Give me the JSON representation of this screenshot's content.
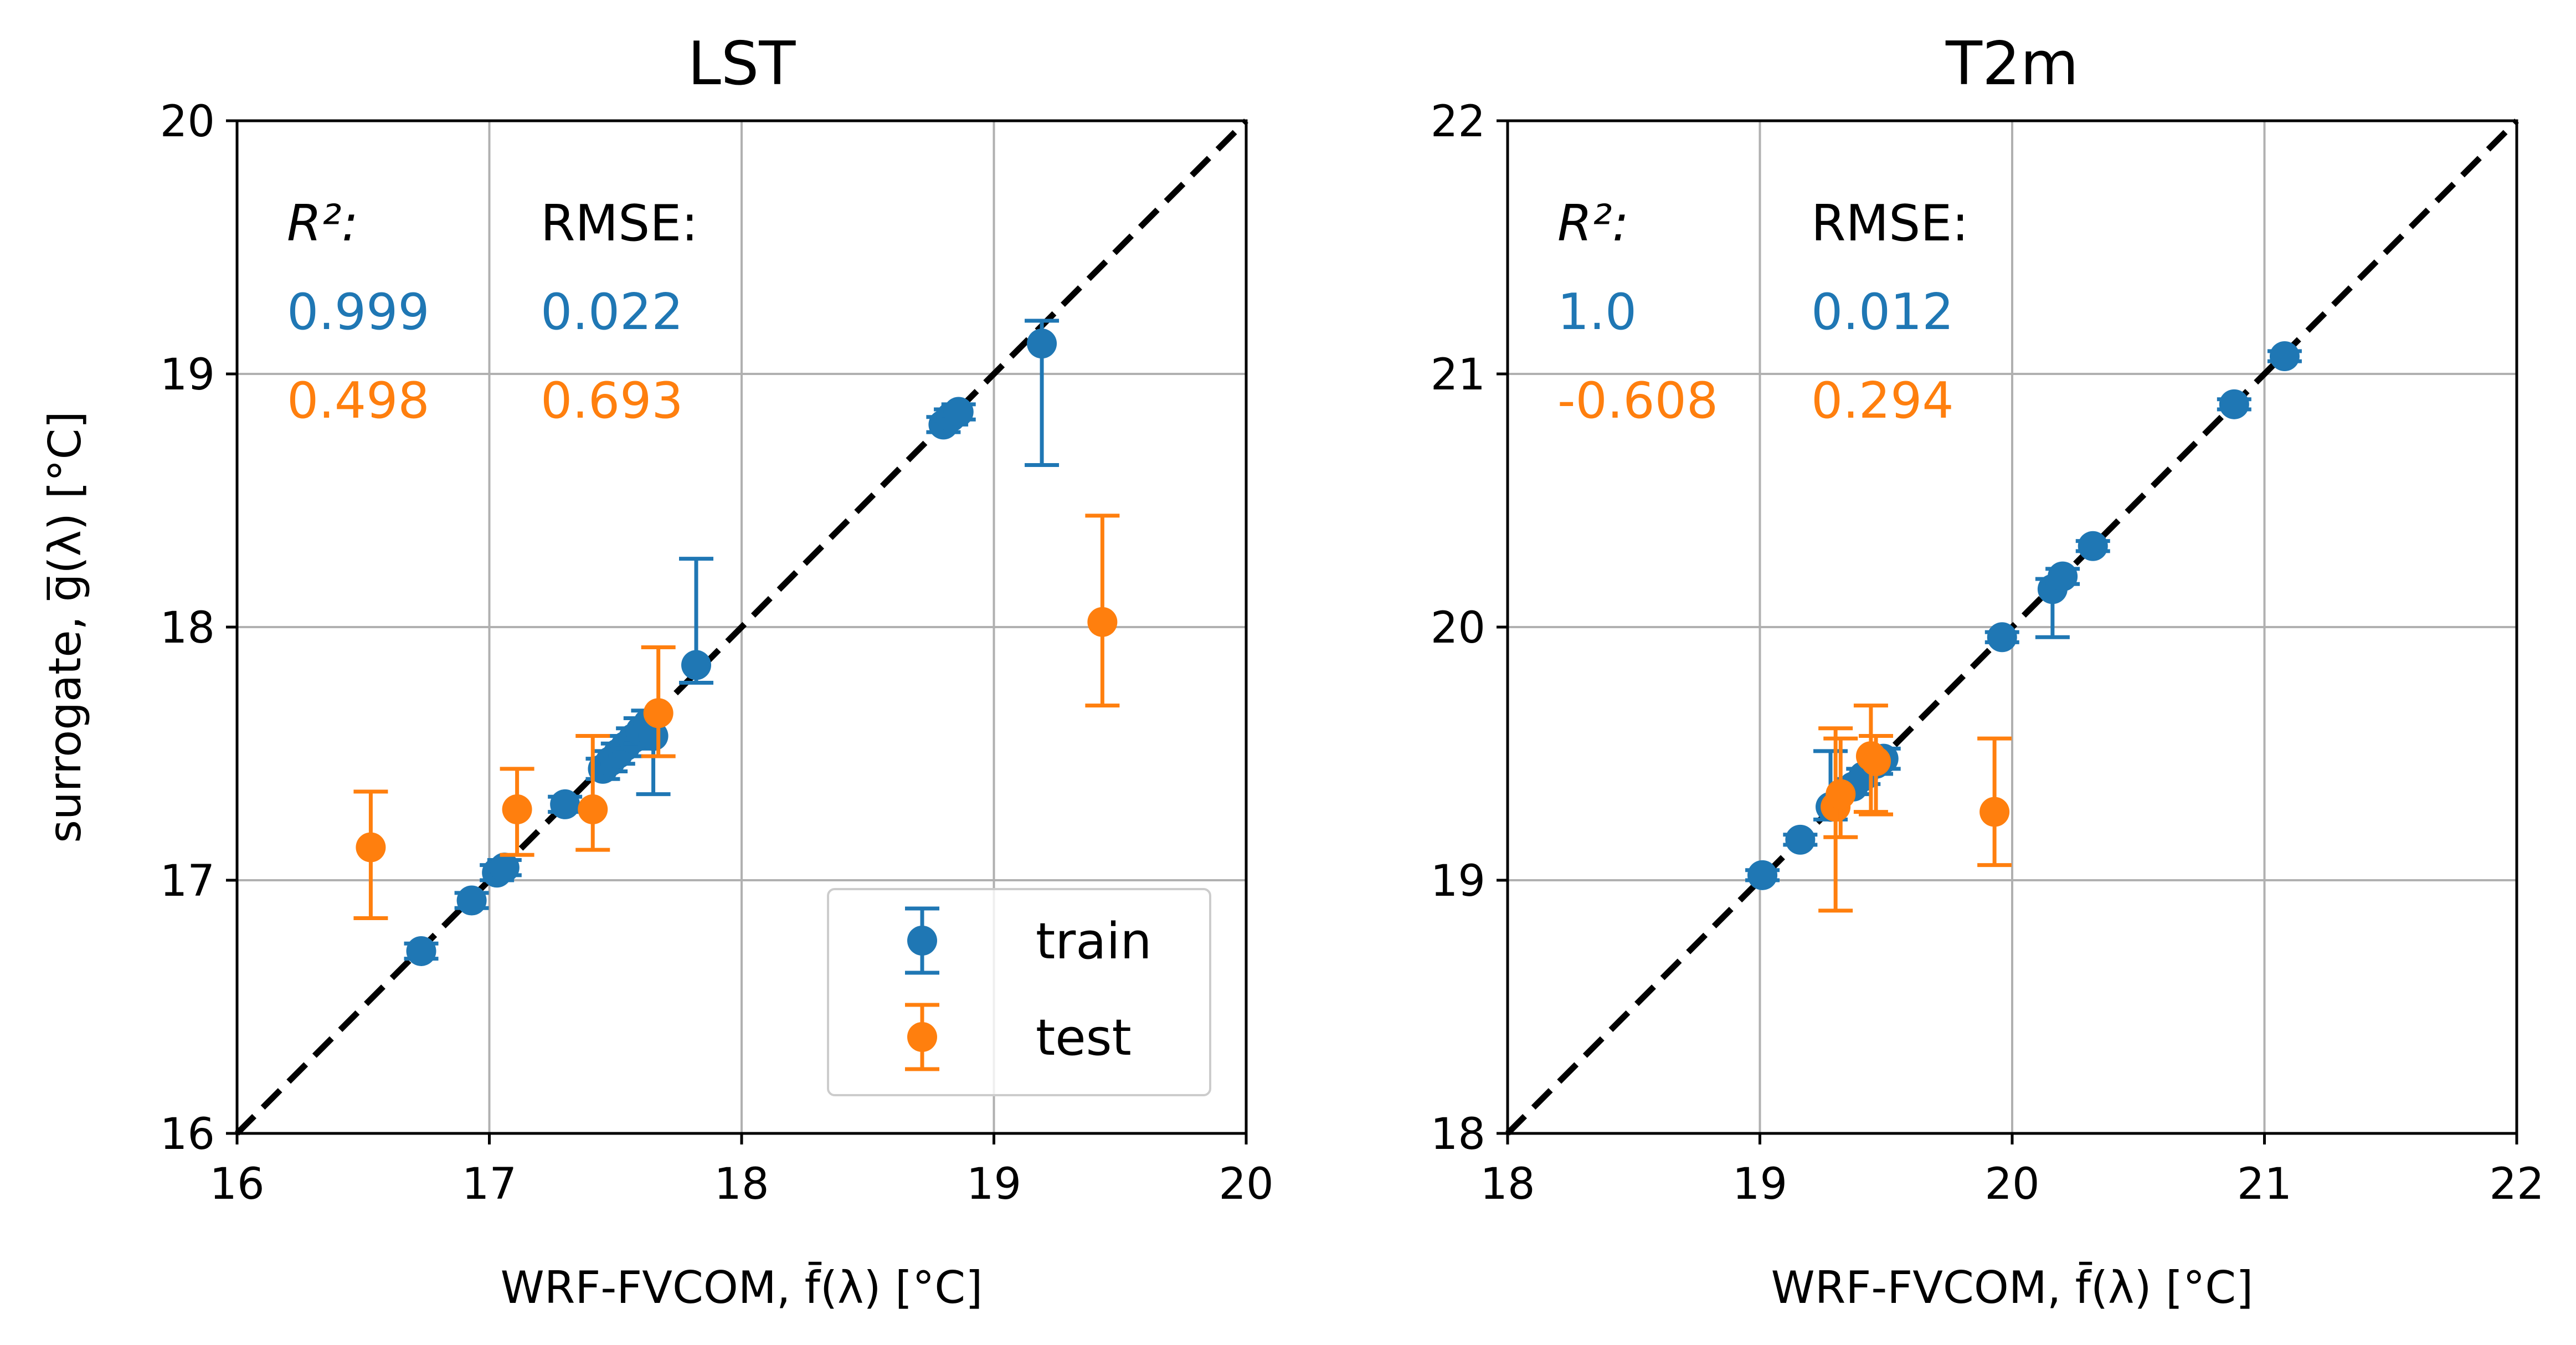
{
  "figure": {
    "ylabel_left": "surrogate, g̅(λ) [°C]"
  },
  "colors": {
    "train": "#1f77b4",
    "test": "#ff7f0e",
    "identity_line": "#000000",
    "grid": "#b0b0b0"
  },
  "legend": {
    "placement": "lower-right",
    "train_label": "train",
    "test_label": "test"
  },
  "chart_data": [
    {
      "type": "scatter",
      "title": "LST",
      "xlabel": "WRF-FVCOM, f̄(λ) [°C]",
      "ylabel": "surrogate, g̅(λ) [°C]",
      "xlim": [
        16,
        20
      ],
      "ylim": [
        16,
        20
      ],
      "xticks": [
        "16",
        "17",
        "18",
        "19",
        "20"
      ],
      "yticks": [
        "16",
        "17",
        "18",
        "19",
        "20"
      ],
      "grid": true,
      "identity_line": true,
      "metrics": {
        "r2_label": "R²:",
        "rmse_label": "RMSE:",
        "train_r2": "0.999",
        "train_rmse": "0.022",
        "test_r2": "0.498",
        "test_rmse": "0.693"
      },
      "series": [
        {
          "name": "train",
          "points": [
            {
              "x": 16.73,
              "y": 16.72,
              "yerr": 0.03
            },
            {
              "x": 16.93,
              "y": 16.92,
              "yerr": 0.03
            },
            {
              "x": 17.03,
              "y": 17.03,
              "yerr": 0.03
            },
            {
              "x": 17.06,
              "y": 17.05,
              "yerr": 0.03
            },
            {
              "x": 17.3,
              "y": 17.3,
              "yerr": 0.03
            },
            {
              "x": 17.45,
              "y": 17.44,
              "yerr": 0.04
            },
            {
              "x": 17.48,
              "y": 17.47,
              "yerr": 0.04
            },
            {
              "x": 17.51,
              "y": 17.5,
              "yerr": 0.04
            },
            {
              "x": 17.54,
              "y": 17.53,
              "yerr": 0.04
            },
            {
              "x": 17.57,
              "y": 17.56,
              "yerr": 0.04
            },
            {
              "x": 17.6,
              "y": 17.59,
              "yerr": 0.05
            },
            {
              "x": 17.63,
              "y": 17.62,
              "yerr": 0.05
            },
            {
              "x": 17.65,
              "y": 17.57,
              "yerr_low": 0.23,
              "yerr_high": 0.07
            },
            {
              "x": 17.82,
              "y": 17.85,
              "yerr_low": 0.07,
              "yerr_high": 0.42
            },
            {
              "x": 18.8,
              "y": 18.8,
              "yerr": 0.03
            },
            {
              "x": 18.83,
              "y": 18.83,
              "yerr": 0.03
            },
            {
              "x": 18.86,
              "y": 18.85,
              "yerr": 0.03
            },
            {
              "x": 19.19,
              "y": 19.12,
              "yerr_low": 0.48,
              "yerr_high": 0.09
            }
          ]
        },
        {
          "name": "test",
          "points": [
            {
              "x": 16.53,
              "y": 17.13,
              "yerr_low": 0.28,
              "yerr_high": 0.22
            },
            {
              "x": 17.11,
              "y": 17.28,
              "yerr_low": 0.18,
              "yerr_high": 0.16
            },
            {
              "x": 17.41,
              "y": 17.28,
              "yerr_low": 0.16,
              "yerr_high": 0.29
            },
            {
              "x": 17.67,
              "y": 17.66,
              "yerr_low": 0.17,
              "yerr_high": 0.26
            },
            {
              "x": 19.43,
              "y": 18.02,
              "yerr_low": 0.33,
              "yerr_high": 0.42
            }
          ]
        }
      ]
    },
    {
      "type": "scatter",
      "title": "T2m",
      "xlabel": "WRF-FVCOM, f̄(λ) [°C]",
      "xlim": [
        18,
        22
      ],
      "ylim": [
        18,
        22
      ],
      "xticks": [
        "18",
        "19",
        "20",
        "21",
        "22"
      ],
      "yticks": [
        "18",
        "19",
        "20",
        "21",
        "22"
      ],
      "grid": true,
      "identity_line": true,
      "metrics": {
        "r2_label": "R²:",
        "rmse_label": "RMSE:",
        "train_r2": "1.0",
        "train_rmse": "0.012",
        "test_r2": "-0.608",
        "test_rmse": "0.294"
      },
      "series": [
        {
          "name": "train",
          "points": [
            {
              "x": 19.01,
              "y": 19.02,
              "yerr": 0.02
            },
            {
              "x": 19.16,
              "y": 19.16,
              "yerr": 0.02
            },
            {
              "x": 19.28,
              "y": 19.29,
              "yerr_low": 0.05,
              "yerr_high": 0.22
            },
            {
              "x": 19.37,
              "y": 19.37,
              "yerr": 0.03
            },
            {
              "x": 19.41,
              "y": 19.41,
              "yerr": 0.03
            },
            {
              "x": 19.46,
              "y": 19.46,
              "yerr": 0.04
            },
            {
              "x": 19.49,
              "y": 19.48,
              "yerr": 0.04
            },
            {
              "x": 19.96,
              "y": 19.96,
              "yerr": 0.02
            },
            {
              "x": 20.16,
              "y": 20.15,
              "yerr_low": 0.19,
              "yerr_high": 0.04
            },
            {
              "x": 20.2,
              "y": 20.2,
              "yerr": 0.03
            },
            {
              "x": 20.32,
              "y": 20.32,
              "yerr": 0.02
            },
            {
              "x": 20.88,
              "y": 20.88,
              "yerr": 0.02
            },
            {
              "x": 21.08,
              "y": 21.07,
              "yerr": 0.02
            }
          ]
        },
        {
          "name": "test",
          "points": [
            {
              "x": 19.3,
              "y": 19.29,
              "yerr_low": 0.41,
              "yerr_high": 0.31
            },
            {
              "x": 19.32,
              "y": 19.34,
              "yerr_low": 0.17,
              "yerr_high": 0.22
            },
            {
              "x": 19.44,
              "y": 19.49,
              "yerr_low": 0.22,
              "yerr_high": 0.2
            },
            {
              "x": 19.46,
              "y": 19.47,
              "yerr_low": 0.21,
              "yerr_high": 0.1
            },
            {
              "x": 19.93,
              "y": 19.27,
              "yerr_low": 0.21,
              "yerr_high": 0.29
            }
          ]
        }
      ]
    }
  ]
}
